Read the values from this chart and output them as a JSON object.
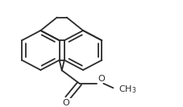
{
  "bg_color": "#ffffff",
  "line_color": "#2a2a2a",
  "line_width": 1.3,
  "fig_width": 2.28,
  "fig_height": 1.33,
  "dpi": 100,
  "xlim": [
    0,
    228
  ],
  "ylim": [
    0,
    133
  ]
}
